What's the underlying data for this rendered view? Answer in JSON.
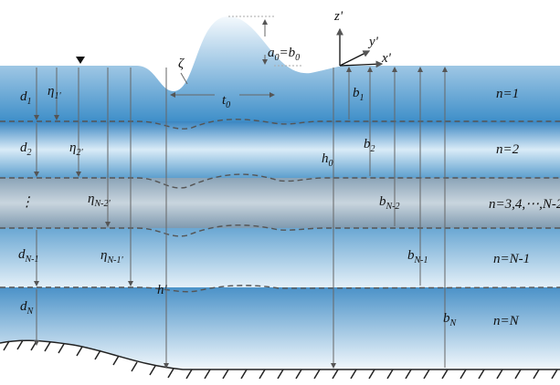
{
  "labels": [
    [
      "a",
      "0",
      "=b",
      "0"
    ],
    [
      "z'"
    ],
    [
      "y'"
    ],
    [
      "x'"
    ],
    [
      "ζ"
    ],
    [
      "t",
      "0"
    ],
    [
      "d",
      "1"
    ],
    [
      "η",
      "1'"
    ],
    [
      "b",
      "1"
    ],
    [
      "n=1"
    ],
    [
      "d",
      "2"
    ],
    [
      "η",
      "2'"
    ],
    [
      "b",
      "2"
    ],
    [
      "n=2"
    ],
    [
      "h",
      "0"
    ],
    [
      "⋮"
    ],
    [
      "η",
      "N-2'"
    ],
    [
      "b",
      "N-2"
    ],
    [
      "n=3,4,⋯,N-2"
    ],
    [
      "d",
      "N-1"
    ],
    [
      "η",
      "N-1'"
    ],
    [
      "b",
      "N-1"
    ],
    [
      "n=N-1"
    ],
    [
      "d",
      "N"
    ],
    [
      "h'"
    ],
    [
      "b",
      "N"
    ],
    [
      "n=N"
    ]
  ]
}
